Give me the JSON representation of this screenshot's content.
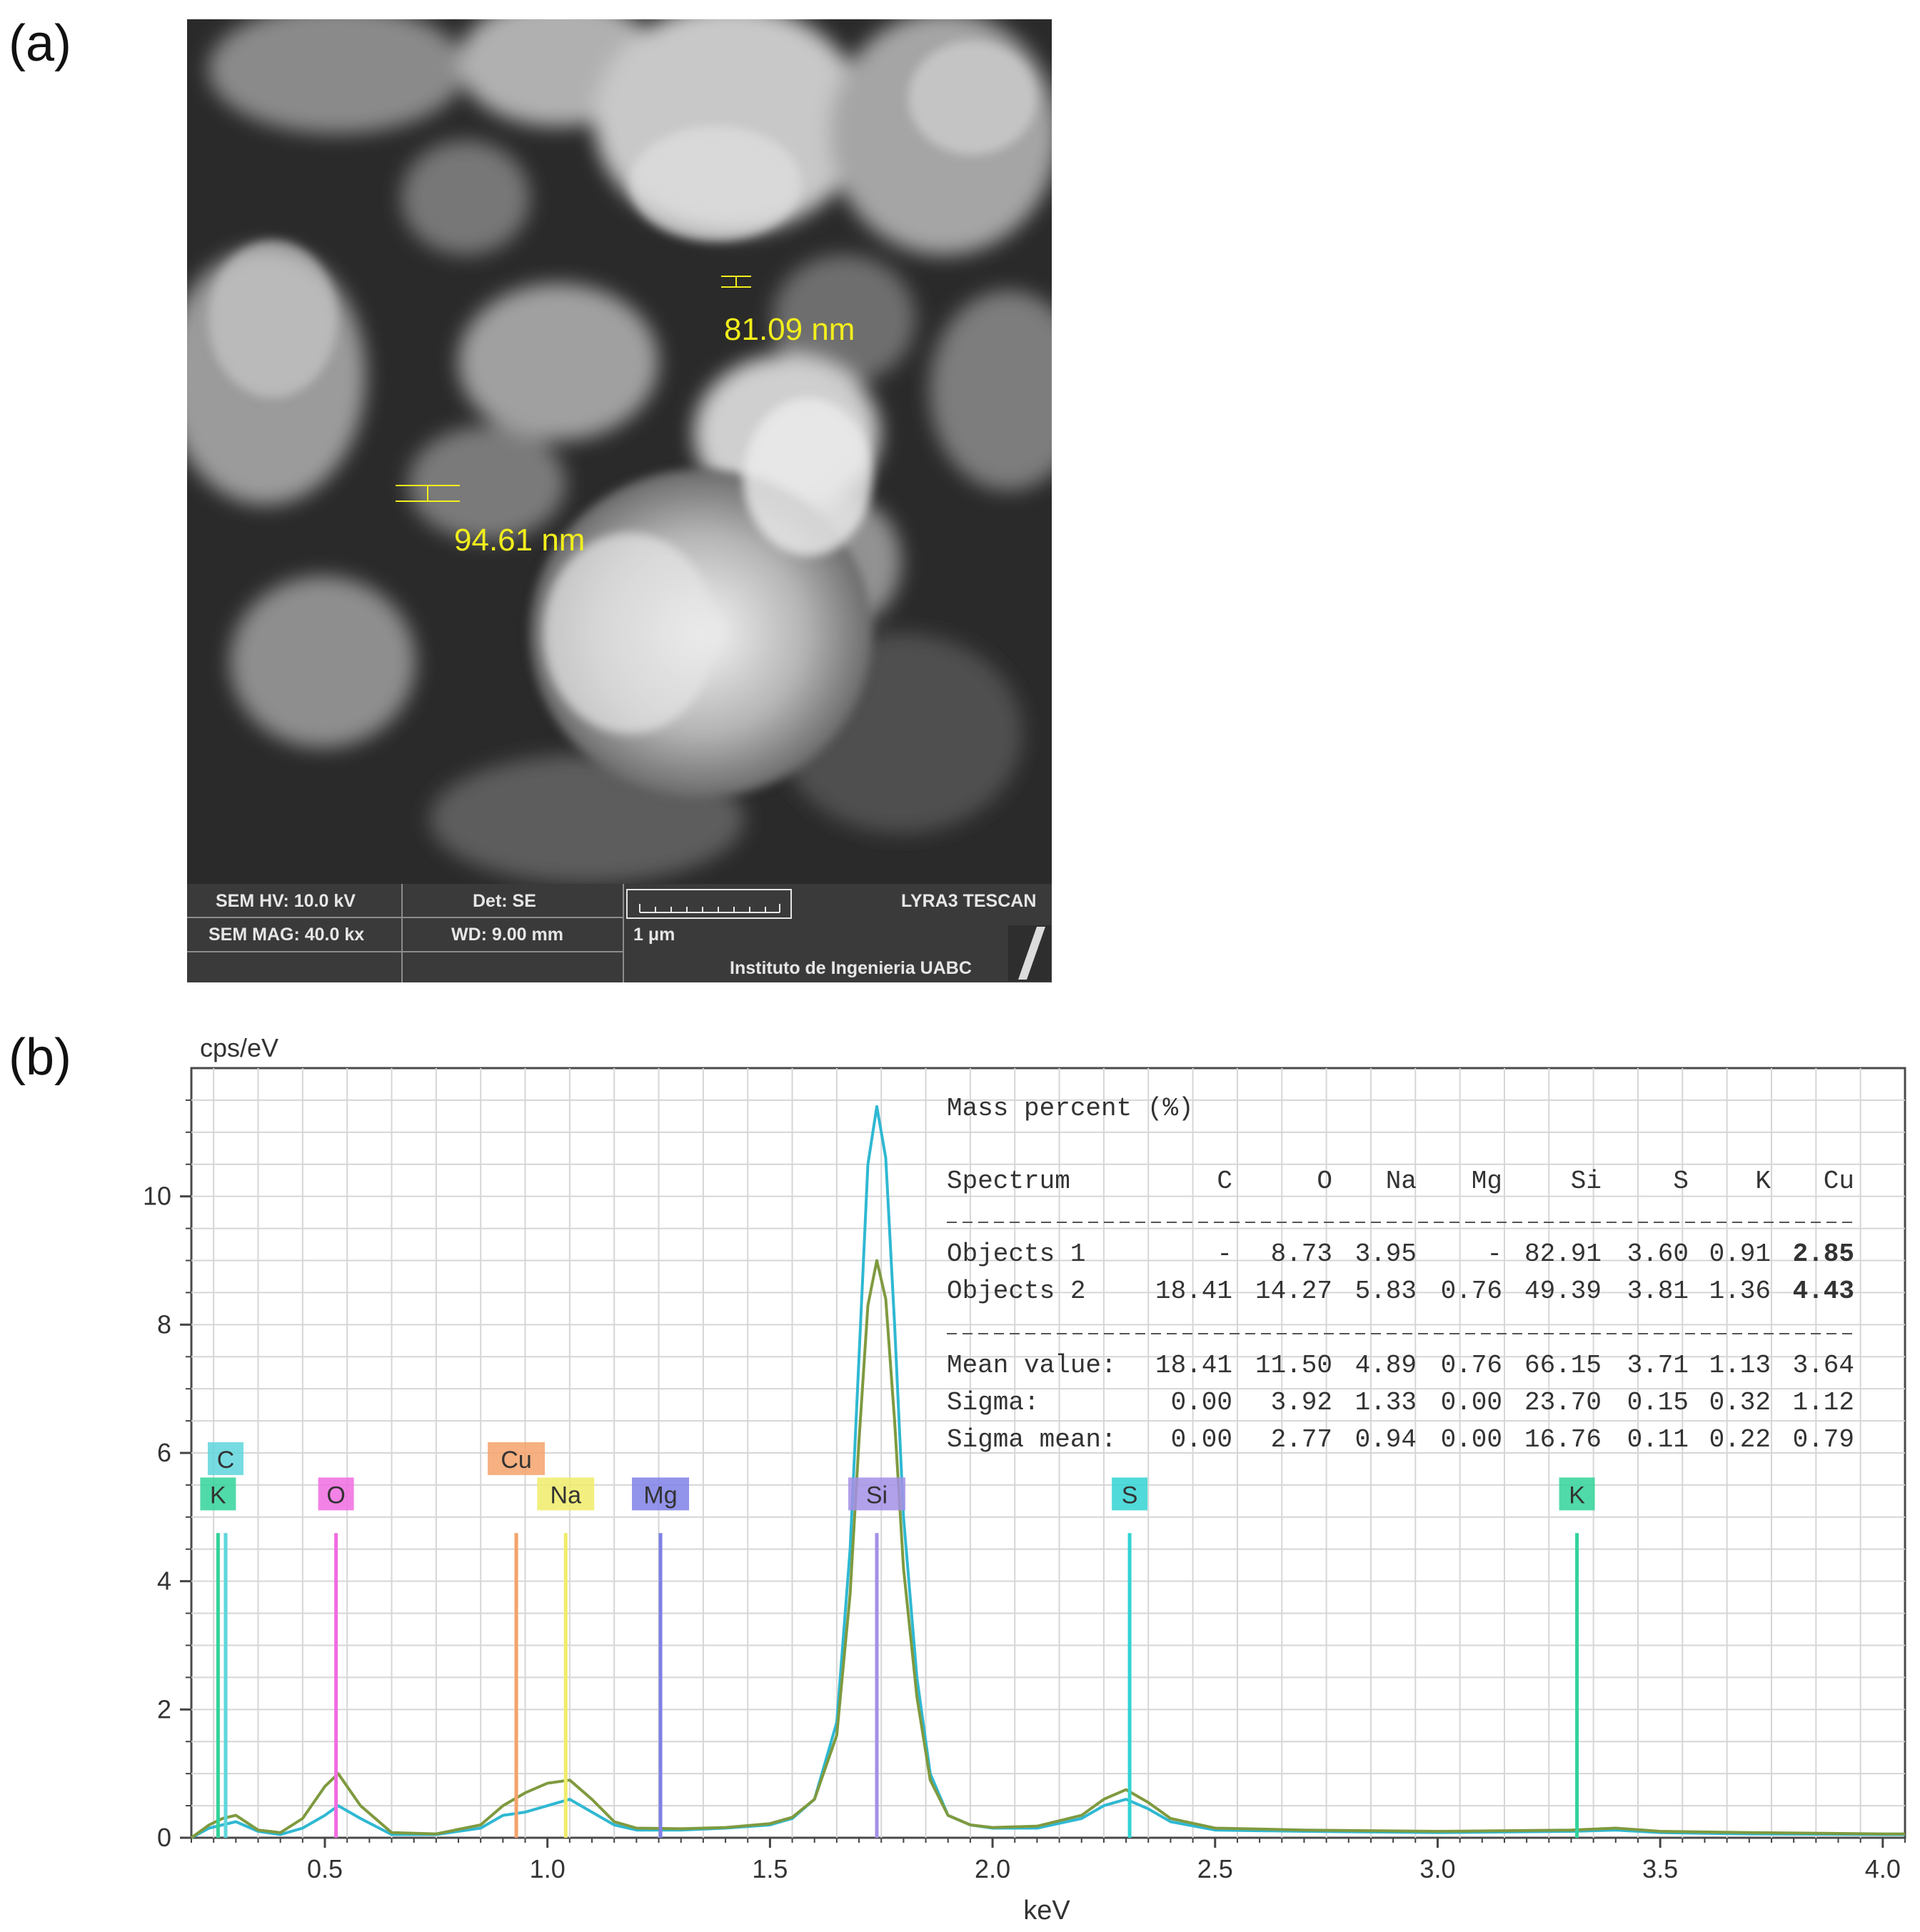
{
  "panel_a": {
    "label": "(a)",
    "measurements": [
      {
        "text": "81.09 nm"
      },
      {
        "text": "94.61 nm"
      }
    ],
    "info_bar": {
      "sem_hv": "SEM HV: 10.0 kV",
      "det": "Det: SE",
      "sem_mag": "SEM MAG: 40.0 kx",
      "wd": "WD: 9.00 mm",
      "scale": "1 μm",
      "instrument": "LYRA3 TESCAN",
      "institution": "Instituto de Ingenieria UABC"
    },
    "colors": {
      "measurement": "#f2ee1c"
    }
  },
  "panel_b": {
    "label": "(b)",
    "chart_data": {
      "type": "line",
      "xlabel": "keV",
      "ylabel": "cps/eV",
      "xlim": [
        0.2,
        4.05
      ],
      "ylim": [
        0,
        12
      ],
      "xticks": [
        "0.5",
        "1.0",
        "1.5",
        "2.0",
        "2.5",
        "3.0",
        "3.5",
        "4.0"
      ],
      "yticks": [
        "0",
        "2",
        "4",
        "6",
        "8",
        "10"
      ],
      "grid": true,
      "series": [
        {
          "color": "#2fb8d2",
          "x": [
            0.2,
            0.24,
            0.27,
            0.3,
            0.35,
            0.4,
            0.45,
            0.5,
            0.53,
            0.58,
            0.65,
            0.75,
            0.85,
            0.9,
            0.95,
            1.0,
            1.05,
            1.1,
            1.15,
            1.2,
            1.3,
            1.4,
            1.5,
            1.55,
            1.6,
            1.65,
            1.68,
            1.7,
            1.72,
            1.74,
            1.76,
            1.78,
            1.8,
            1.83,
            1.86,
            1.9,
            1.95,
            2.0,
            2.1,
            2.2,
            2.25,
            2.3,
            2.35,
            2.4,
            2.5,
            2.7,
            3.0,
            3.3,
            3.4,
            3.5,
            3.7,
            4.0,
            4.05
          ],
          "y": [
            0.0,
            0.15,
            0.2,
            0.25,
            0.1,
            0.05,
            0.15,
            0.35,
            0.5,
            0.3,
            0.05,
            0.05,
            0.15,
            0.35,
            0.4,
            0.5,
            0.6,
            0.4,
            0.2,
            0.12,
            0.12,
            0.15,
            0.2,
            0.3,
            0.6,
            1.8,
            4.5,
            7.5,
            10.5,
            11.4,
            10.6,
            8.0,
            5.0,
            2.5,
            1.0,
            0.35,
            0.2,
            0.15,
            0.15,
            0.3,
            0.5,
            0.6,
            0.45,
            0.25,
            0.12,
            0.1,
            0.08,
            0.1,
            0.12,
            0.08,
            0.06,
            0.05,
            0.05
          ]
        },
        {
          "color": "#7f9a3f",
          "x": [
            0.2,
            0.24,
            0.27,
            0.3,
            0.35,
            0.4,
            0.45,
            0.5,
            0.53,
            0.58,
            0.65,
            0.75,
            0.85,
            0.9,
            0.95,
            1.0,
            1.05,
            1.1,
            1.15,
            1.2,
            1.3,
            1.4,
            1.5,
            1.55,
            1.6,
            1.65,
            1.68,
            1.7,
            1.72,
            1.74,
            1.76,
            1.78,
            1.8,
            1.83,
            1.86,
            1.9,
            1.95,
            2.0,
            2.1,
            2.2,
            2.25,
            2.3,
            2.35,
            2.4,
            2.5,
            2.7,
            3.0,
            3.3,
            3.4,
            3.5,
            3.7,
            4.0,
            4.05
          ],
          "y": [
            0.0,
            0.2,
            0.3,
            0.35,
            0.12,
            0.08,
            0.3,
            0.8,
            1.0,
            0.5,
            0.08,
            0.06,
            0.2,
            0.5,
            0.7,
            0.85,
            0.9,
            0.6,
            0.25,
            0.15,
            0.14,
            0.16,
            0.22,
            0.32,
            0.6,
            1.6,
            3.8,
            6.2,
            8.3,
            9.0,
            8.4,
            6.5,
            4.2,
            2.2,
            0.9,
            0.35,
            0.2,
            0.16,
            0.18,
            0.35,
            0.6,
            0.75,
            0.55,
            0.3,
            0.15,
            0.12,
            0.1,
            0.12,
            0.15,
            0.1,
            0.08,
            0.06,
            0.06
          ]
        }
      ],
      "element_markers": [
        {
          "label": "C",
          "x": 0.277,
          "row": 2,
          "color": "#5ed6dc"
        },
        {
          "label": "K",
          "x": 0.26,
          "row": 1,
          "color": "#32d39a"
        },
        {
          "label": "O",
          "x": 0.525,
          "row": 1,
          "color": "#f06ce0"
        },
        {
          "label": "Cu",
          "x": 0.93,
          "row": 2,
          "color": "#f4a26b"
        },
        {
          "label": "Na",
          "x": 1.041,
          "row": 1,
          "color": "#f0ec6a"
        },
        {
          "label": "Mg",
          "x": 1.254,
          "row": 1,
          "color": "#7f80e6"
        },
        {
          "label": "Si",
          "x": 1.74,
          "row": 1,
          "color": "#a38fe6"
        },
        {
          "label": "S",
          "x": 2.308,
          "row": 1,
          "color": "#32d3d3"
        },
        {
          "label": "K",
          "x": 3.313,
          "row": 1,
          "color": "#32d39a"
        }
      ],
      "table": {
        "title": "Mass percent (%)",
        "columns": [
          "Spectrum",
          "C",
          "O",
          "Na",
          "Mg",
          "Si",
          "S",
          "K",
          "Cu"
        ],
        "rows": [
          [
            "Objects 1",
            "-",
            "8.73",
            "3.95",
            "-",
            "82.91",
            "3.60",
            "0.91",
            "2.85"
          ],
          [
            "Objects 2",
            "18.41",
            "14.27",
            "5.83",
            "0.76",
            "49.39",
            "3.81",
            "1.36",
            "4.43"
          ]
        ],
        "stats": [
          [
            "Mean value:",
            "18.41",
            "11.50",
            "4.89",
            "0.76",
            "66.15",
            "3.71",
            "1.13",
            "3.64"
          ],
          [
            "Sigma:",
            "0.00",
            "3.92",
            "1.33",
            "0.00",
            "23.70",
            "0.15",
            "0.32",
            "1.12"
          ],
          [
            "Sigma mean:",
            "0.00",
            "2.77",
            "0.94",
            "0.00",
            "16.76",
            "0.11",
            "0.22",
            "0.79"
          ]
        ]
      }
    }
  }
}
